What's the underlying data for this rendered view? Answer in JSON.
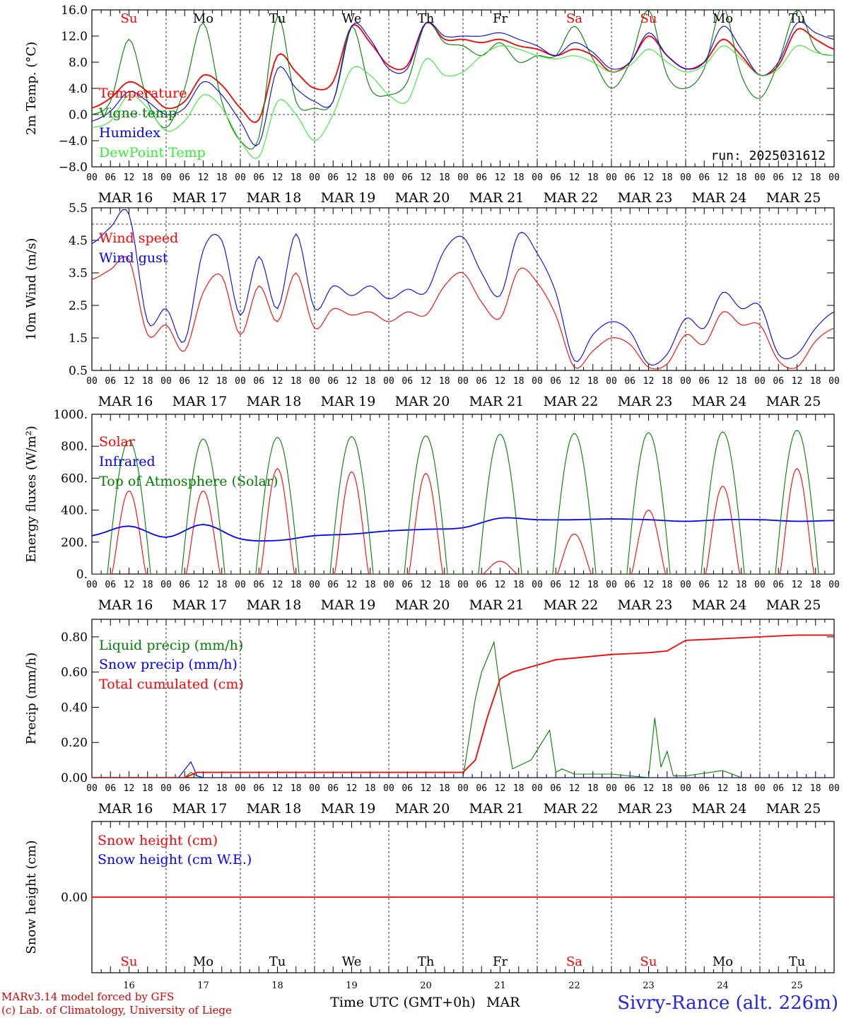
{
  "run_label": "run: 2025031612",
  "footer": {
    "model": "MARv3.14 model forced by GFS",
    "lab": "(c) Lab. of Climatology, University of Liege",
    "xlabel": "Time UTC (GMT+0h)",
    "month": "MAR",
    "station": "Sivry-Rance (alt. 226m)"
  },
  "days": [
    {
      "abbr": "Su",
      "date": "MAR 16",
      "num": "16",
      "weekend": true
    },
    {
      "abbr": "Mo",
      "date": "MAR 17",
      "num": "17",
      "weekend": false
    },
    {
      "abbr": "Tu",
      "date": "MAR 18",
      "num": "18",
      "weekend": false
    },
    {
      "abbr": "We",
      "date": "MAR 19",
      "num": "19",
      "weekend": false
    },
    {
      "abbr": "Th",
      "date": "MAR 20",
      "num": "20",
      "weekend": false
    },
    {
      "abbr": "Fr",
      "date": "MAR 21",
      "num": "21",
      "weekend": false
    },
    {
      "abbr": "Sa",
      "date": "MAR 22",
      "num": "22",
      "weekend": true
    },
    {
      "abbr": "Su",
      "date": "MAR 23",
      "num": "23",
      "weekend": true
    },
    {
      "abbr": "Mo",
      "date": "MAR 24",
      "num": "24",
      "weekend": false
    },
    {
      "abbr": "Tu",
      "date": "MAR 25",
      "num": "25",
      "weekend": false
    }
  ],
  "hour_ticks": [
    "00",
    "06",
    "12",
    "18"
  ],
  "colors": {
    "red": "#ff0000",
    "blue": "#0000ff",
    "green": "#008000",
    "lightgreen": "#33ee33",
    "darkred": "#dd0000"
  },
  "chart_data": [
    {
      "type": "line",
      "ylabel": "2m Temp. (°C)",
      "ylim": [
        -8,
        16
      ],
      "yticks": [
        "16.0",
        "12.0",
        "8.0",
        "4.0",
        "0.0",
        "−4.0",
        "−8.0"
      ],
      "ytick_values": [
        16,
        12,
        8,
        4,
        0,
        -4,
        -8
      ],
      "dashed_ref": 0,
      "x_hours": [
        0,
        6,
        12,
        18,
        24,
        30,
        36,
        42,
        48,
        54,
        60,
        66,
        72,
        78,
        84,
        90,
        96,
        102,
        108,
        114,
        120,
        126,
        132,
        138,
        144,
        150,
        156,
        162,
        168,
        174,
        180,
        186,
        192,
        198,
        204,
        210,
        216,
        222,
        228,
        234,
        240
      ],
      "series": [
        {
          "name": "Temperature",
          "color": "#ff0000",
          "values": [
            1.0,
            2.5,
            5.0,
            3.5,
            1.0,
            2.0,
            6.0,
            4.5,
            1.0,
            -0.8,
            9.0,
            6.5,
            4.0,
            5.0,
            13.5,
            11.0,
            7.5,
            7.5,
            14.0,
            11.5,
            11.5,
            11.0,
            11.5,
            10.5,
            10.0,
            9.0,
            10.0,
            9.0,
            6.5,
            8.0,
            12.0,
            9.0,
            7.0,
            8.0,
            11.5,
            9.0,
            6.0,
            7.5,
            13.0,
            11.5,
            10.0
          ]
        },
        {
          "name": "Vigne temp",
          "color": "#008000",
          "values": [
            0.0,
            2.0,
            11.5,
            2.0,
            -2.0,
            4.0,
            14.0,
            2.0,
            -4.0,
            -3.5,
            15.0,
            2.0,
            1.0,
            2.0,
            13.5,
            4.0,
            3.0,
            5.0,
            14.0,
            11.0,
            10.5,
            9.0,
            11.0,
            8.0,
            9.0,
            9.0,
            13.5,
            8.5,
            4.0,
            8.0,
            16.0,
            6.0,
            4.0,
            7.0,
            16.5,
            6.0,
            2.5,
            8.0,
            16.0,
            10.0,
            9.0
          ]
        },
        {
          "name": "Humidex",
          "color": "#0000ff",
          "values": [
            -1.0,
            0.5,
            3.5,
            2.0,
            0.0,
            1.0,
            5.0,
            3.0,
            -1.0,
            -4.5,
            7.0,
            4.0,
            2.0,
            2.0,
            13.5,
            11.5,
            7.0,
            7.0,
            14.0,
            12.0,
            12.0,
            12.0,
            12.5,
            11.5,
            10.5,
            9.0,
            11.0,
            9.5,
            7.0,
            8.0,
            12.5,
            9.0,
            7.0,
            8.0,
            13.5,
            10.0,
            6.0,
            8.0,
            14.0,
            12.5,
            11.5
          ]
        },
        {
          "name": "DewPoint Temp",
          "color": "#33ee33",
          "values": [
            -2.0,
            -1.0,
            3.0,
            1.0,
            -2.5,
            -1.0,
            3.0,
            1.0,
            -4.0,
            -6.5,
            2.0,
            0.0,
            -4.0,
            0.0,
            7.0,
            6.0,
            3.0,
            2.0,
            8.5,
            6.0,
            6.5,
            9.0,
            10.5,
            10.0,
            9.0,
            8.5,
            9.0,
            8.0,
            6.5,
            7.5,
            10.0,
            8.0,
            6.5,
            7.5,
            10.5,
            8.5,
            6.0,
            7.0,
            10.5,
            9.5,
            9.0
          ]
        }
      ]
    },
    {
      "type": "line",
      "ylabel": "10m Wind (m/s)",
      "ylim": [
        0.5,
        5.5
      ],
      "yticks": [
        "5.5",
        "4.5",
        "3.5",
        "2.5",
        "1.5",
        "0.5"
      ],
      "ytick_values": [
        5.5,
        4.5,
        3.5,
        2.5,
        1.5,
        0.5
      ],
      "dashed_ref": 5,
      "x_hours": [
        0,
        6,
        12,
        18,
        24,
        30,
        36,
        42,
        48,
        54,
        60,
        66,
        72,
        78,
        84,
        90,
        96,
        102,
        108,
        114,
        120,
        126,
        132,
        138,
        144,
        150,
        156,
        162,
        168,
        174,
        180,
        186,
        192,
        198,
        204,
        210,
        216,
        222,
        228,
        234,
        240
      ],
      "series": [
        {
          "name": "Wind speed",
          "color": "#ff0000",
          "values": [
            3.3,
            3.6,
            3.9,
            1.6,
            1.9,
            1.1,
            2.9,
            3.4,
            1.6,
            3.1,
            2.0,
            3.5,
            1.8,
            2.4,
            2.2,
            2.3,
            2.0,
            2.3,
            2.2,
            3.1,
            3.5,
            2.6,
            2.1,
            3.6,
            3.2,
            2.2,
            0.6,
            1.1,
            1.5,
            1.3,
            0.6,
            0.7,
            1.6,
            1.3,
            2.3,
            1.9,
            1.9,
            0.8,
            0.6,
            1.4,
            1.8
          ]
        },
        {
          "name": "Wind gust",
          "color": "#0000ff",
          "values": [
            4.4,
            4.9,
            5.3,
            2.0,
            2.4,
            1.4,
            4.2,
            4.5,
            2.2,
            4.0,
            2.4,
            4.7,
            2.4,
            3.1,
            2.8,
            3.1,
            2.7,
            3.0,
            2.9,
            4.2,
            4.6,
            3.5,
            2.8,
            4.7,
            4.1,
            2.9,
            0.8,
            1.6,
            2.0,
            1.7,
            0.7,
            1.0,
            2.1,
            1.8,
            2.9,
            2.4,
            2.5,
            1.0,
            1.0,
            1.8,
            2.3
          ]
        }
      ]
    },
    {
      "type": "line",
      "ylabel": "Energy fluxes (W/m²)",
      "ylim": [
        0,
        1000
      ],
      "yticks": [
        "1000.",
        "800.",
        "600.",
        "400.",
        "200.",
        "0."
      ],
      "ytick_values": [
        1000,
        800,
        600,
        400,
        200,
        0
      ],
      "dashed_ref": null,
      "series": [
        {
          "name": "Solar",
          "color": "#ff0000",
          "day_peaks": [
            520,
            520,
            660,
            640,
            630,
            80,
            250,
            400,
            550,
            660
          ]
        },
        {
          "name": "Infrared",
          "color": "#0000ff",
          "x_hours": [
            0,
            12,
            24,
            36,
            48,
            60,
            72,
            84,
            96,
            108,
            120,
            132,
            144,
            156,
            168,
            180,
            192,
            204,
            216,
            228,
            240
          ],
          "values": [
            240,
            300,
            230,
            310,
            220,
            210,
            240,
            250,
            270,
            280,
            290,
            350,
            340,
            340,
            345,
            340,
            330,
            340,
            340,
            330,
            335
          ]
        },
        {
          "name": "Top of Atmosphere (Solar)",
          "color": "#008000",
          "day_peaks": [
            835,
            845,
            855,
            860,
            865,
            875,
            880,
            885,
            890,
            900
          ]
        }
      ]
    },
    {
      "type": "line",
      "ylabel": "Precip (mm/h)",
      "ylim": [
        0,
        0.9
      ],
      "yticks": [
        "0.80",
        "0.60",
        "0.40",
        "0.20",
        "0.00"
      ],
      "ytick_values": [
        0.8,
        0.6,
        0.4,
        0.2,
        0.0
      ],
      "dashed_ref": null,
      "series": [
        {
          "name": "Liquid precip (mm/h)",
          "color": "#008000",
          "x_hours": [
            0,
            30,
            32,
            34,
            36,
            120,
            124,
            126,
            130,
            132,
            136,
            142,
            148,
            150,
            152,
            156,
            168,
            180,
            182,
            184,
            186,
            188,
            192,
            204,
            210,
            240
          ],
          "values": [
            0,
            0,
            0.03,
            0.01,
            0,
            0,
            0.45,
            0.6,
            0.77,
            0.5,
            0.05,
            0.1,
            0.27,
            0.03,
            0.05,
            0.02,
            0.02,
            0,
            0.34,
            0.06,
            0.15,
            0.01,
            0.01,
            0.04,
            0,
            0
          ]
        },
        {
          "name": "Snow precip (mm/h)",
          "color": "#0000ff",
          "x_hours": [
            0,
            28,
            32,
            34,
            36,
            240
          ],
          "values": [
            0,
            0,
            0.09,
            0.01,
            0,
            0
          ]
        },
        {
          "name": "Total cumulated (cm)",
          "color": "#ff0000",
          "x_hours": [
            0,
            30,
            34,
            120,
            124,
            128,
            132,
            136,
            140,
            144,
            150,
            156,
            168,
            180,
            186,
            192,
            204,
            216,
            228,
            240
          ],
          "values": [
            0,
            0,
            0.03,
            0.03,
            0.1,
            0.35,
            0.56,
            0.6,
            0.62,
            0.64,
            0.67,
            0.68,
            0.7,
            0.71,
            0.72,
            0.78,
            0.79,
            0.8,
            0.81,
            0.81
          ]
        }
      ]
    },
    {
      "type": "line",
      "ylabel": "Snow height (cm)",
      "ylim": [
        -1,
        1
      ],
      "yticks": [
        "0.00"
      ],
      "ytick_values": [
        0
      ],
      "dashed_ref": null,
      "series": [
        {
          "name": "Snow height (cm)",
          "color": "#ff0000",
          "x_hours": [
            0,
            240
          ],
          "values": [
            0,
            0
          ]
        },
        {
          "name": "Snow height (cm W.E.)",
          "color": "#0000ff",
          "x_hours": [],
          "values": []
        }
      ]
    }
  ]
}
